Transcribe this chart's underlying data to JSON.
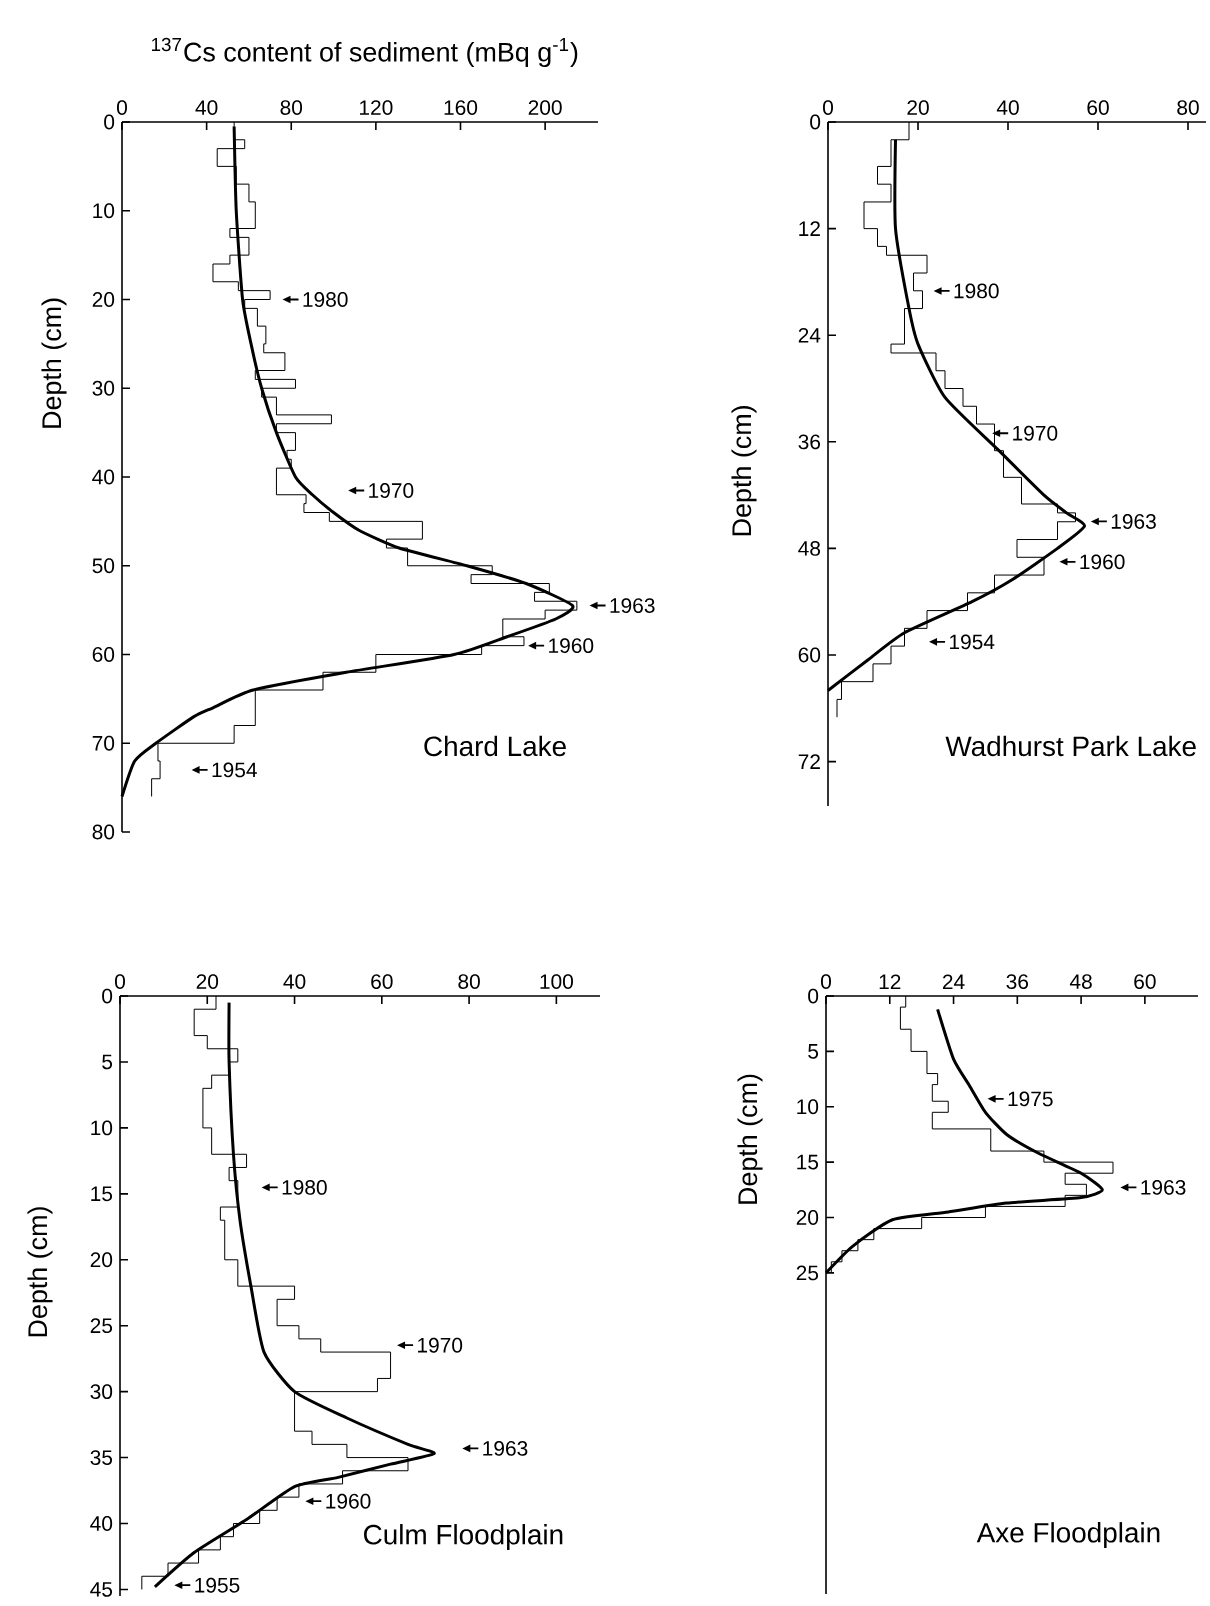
{
  "chart_data": [
    {
      "type": "line",
      "xlabel": "$^{137}$Cs content of sediment (mBq g$^{-1}$)",
      "ylabel": "Depth (cm)",
      "title": "Chard Lake",
      "xlim": [
        0,
        225
      ],
      "xticks": [
        0,
        40,
        80,
        120,
        160,
        200
      ],
      "ylim": [
        80,
        0
      ],
      "yticks": [
        0,
        10,
        20,
        30,
        40,
        50,
        60,
        70,
        80
      ],
      "series": [
        {
          "type": "step",
          "color": "#000000",
          "x": [
            53,
            53,
            58,
            58,
            45,
            45,
            54,
            54,
            60,
            60,
            63,
            63,
            51,
            51,
            60,
            60,
            51,
            51,
            43,
            43,
            55,
            55,
            70,
            70,
            58,
            58,
            64,
            64,
            68,
            68,
            67,
            67,
            77,
            77,
            63,
            63,
            82,
            82,
            66,
            66,
            73,
            73,
            99,
            99,
            73,
            73,
            82,
            82,
            78,
            78,
            80,
            80,
            73,
            73,
            87,
            87,
            86,
            86,
            98,
            98,
            142,
            142,
            125,
            125,
            135,
            135,
            175,
            175,
            165,
            165,
            202,
            202,
            195,
            195,
            215,
            215,
            200,
            200,
            180,
            180,
            190,
            190,
            170,
            170,
            120,
            120,
            95,
            95,
            63,
            63,
            53,
            53,
            17,
            17,
            18,
            18,
            14,
            14
          ],
          "values": [
            0,
            2,
            2,
            3,
            3,
            5,
            5,
            7,
            7,
            9,
            9,
            12,
            12,
            13,
            13,
            15,
            15,
            16,
            16,
            18,
            18,
            19,
            19,
            20,
            20,
            21,
            21,
            23,
            23,
            25,
            25,
            26,
            26,
            28,
            28,
            29,
            29,
            30,
            30,
            31,
            31,
            33,
            33,
            34,
            34,
            35,
            35,
            37,
            37,
            38,
            38,
            39,
            39,
            42,
            42,
            43,
            43,
            44,
            44,
            45,
            45,
            47,
            47,
            48,
            48,
            50,
            50,
            51,
            51,
            52,
            52,
            53,
            53,
            54,
            54,
            55,
            55,
            56,
            56,
            58,
            58,
            59,
            59,
            60,
            60,
            62,
            62,
            64,
            64,
            68,
            68,
            70,
            70,
            72,
            72,
            74,
            74,
            76
          ]
        },
        {
          "type": "line",
          "color": "#000000",
          "x": [
            53,
            54,
            57,
            61,
            66,
            73,
            82,
            90,
            100,
            112,
            131,
            163,
            191,
            213,
            205,
            182,
            157,
            106,
            62,
            43,
            34,
            16,
            6,
            0
          ],
          "values": [
            0.5,
            10,
            20,
            25,
            30,
            35,
            40,
            42,
            44,
            46,
            48,
            50,
            52,
            54.5,
            56,
            58,
            60,
            62,
            64,
            66,
            67,
            70,
            72,
            76
          ]
        }
      ],
      "annotations": [
        "1980",
        "1970",
        "1963",
        "1960",
        "1954"
      ]
    },
    {
      "type": "line",
      "ylabel": "Depth (cm)",
      "title": "Wadhurst Park Lake",
      "xlim": [
        0,
        84
      ],
      "xticks": [
        0,
        20,
        40,
        60,
        80
      ],
      "ylim": [
        77,
        0
      ],
      "yticks": [
        0,
        12,
        24,
        36,
        48,
        60,
        72
      ],
      "series": [
        {
          "type": "step",
          "color": "#000000",
          "x": [
            18,
            18,
            14,
            14,
            11,
            11,
            14,
            14,
            8,
            8,
            11,
            11,
            13,
            13,
            22,
            22,
            19,
            19,
            21,
            21,
            17,
            17,
            14,
            14,
            24,
            24,
            26,
            26,
            30,
            30,
            33,
            33,
            37,
            37,
            39,
            39,
            43,
            43,
            51,
            51,
            55,
            55,
            51,
            51,
            42,
            42,
            48,
            48,
            37,
            37,
            31,
            31,
            22,
            22,
            17,
            17,
            14,
            14,
            10,
            10,
            3,
            3,
            2,
            2
          ],
          "values": [
            0,
            2,
            2,
            5,
            5,
            7,
            7,
            9,
            9,
            12,
            12,
            14,
            14,
            15,
            15,
            17,
            17,
            19,
            19,
            21,
            21,
            25,
            25,
            26,
            26,
            28,
            28,
            30,
            30,
            32,
            32,
            34,
            34,
            37,
            37,
            40,
            40,
            43,
            43,
            44,
            44,
            45,
            45,
            47,
            47,
            49,
            49,
            51,
            51,
            53,
            53,
            55,
            55,
            57,
            57,
            59,
            59,
            61,
            61,
            63,
            63,
            65,
            65,
            67
          ]
        },
        {
          "type": "line",
          "color": "#000000",
          "x": [
            15,
            15,
            18,
            20,
            26,
            38,
            48,
            53,
            57,
            51,
            41,
            32,
            17,
            9,
            0
          ],
          "values": [
            2,
            12,
            21,
            25,
            31,
            37,
            42,
            44,
            45.5,
            48,
            51.5,
            54,
            57.5,
            60.5,
            64
          ]
        }
      ],
      "annotations": [
        "1980",
        "1970",
        "1963",
        "1960",
        "1954"
      ]
    },
    {
      "type": "line",
      "ylabel": "Depth (cm)",
      "title": "Culm Floodplain",
      "xlim": [
        0,
        110
      ],
      "xticks": [
        0,
        20,
        40,
        60,
        80,
        100
      ],
      "ylim": [
        45.5,
        0
      ],
      "yticks": [
        0,
        5,
        10,
        15,
        20,
        25,
        30,
        35,
        40,
        45
      ],
      "series": [
        {
          "type": "step",
          "color": "#000000",
          "x": [
            22,
            22,
            17,
            17,
            20,
            20,
            27,
            27,
            25,
            25,
            21,
            21,
            19,
            19,
            21,
            21,
            29,
            29,
            25,
            25,
            27,
            27,
            23,
            23,
            24,
            24,
            27,
            27,
            40,
            40,
            36,
            36,
            41,
            41,
            46,
            46,
            62,
            62,
            59,
            59,
            40,
            40,
            44,
            44,
            52,
            52,
            66,
            66,
            51,
            51,
            41,
            41,
            36,
            36,
            32,
            32,
            26,
            26,
            23,
            23,
            18,
            18,
            11,
            11,
            5,
            5
          ],
          "values": [
            0,
            1,
            1,
            3,
            3,
            4,
            4,
            5,
            5,
            6,
            6,
            7,
            7,
            10,
            10,
            12,
            12,
            13,
            13,
            14,
            14,
            16,
            16,
            17,
            17,
            20,
            20,
            22,
            22,
            23,
            23,
            25,
            25,
            26,
            26,
            27,
            27,
            29,
            29,
            30,
            30,
            33,
            33,
            34,
            34,
            35,
            35,
            36,
            36,
            37,
            37,
            38,
            38,
            39,
            39,
            40,
            40,
            41,
            41,
            42,
            42,
            43,
            43,
            44,
            44,
            45
          ]
        },
        {
          "type": "line",
          "color": "#000000",
          "x": [
            25,
            25,
            26,
            27.5,
            30,
            33,
            40,
            52,
            66,
            72,
            62,
            50,
            40,
            29,
            17,
            8
          ],
          "values": [
            0.5,
            5,
            12,
            17,
            22,
            27,
            30,
            32,
            34,
            34.7,
            35.5,
            36.5,
            37.2,
            39.7,
            42.2,
            44.8
          ]
        }
      ],
      "annotations": [
        "1980",
        "1970",
        "1963",
        "1960",
        "1955"
      ]
    },
    {
      "type": "line",
      "ylabel": "Depth (cm)",
      "title": "Axe Floodplain",
      "xlim": [
        0,
        70
      ],
      "xticks": [
        0,
        12,
        24,
        36,
        48,
        60
      ],
      "ylim": [
        54,
        0
      ],
      "yticks": [
        0,
        5,
        10,
        15,
        20,
        25
      ],
      "series": [
        {
          "type": "step",
          "color": "#000000",
          "x": [
            15,
            15,
            14,
            14,
            16,
            16,
            19,
            19,
            21,
            21,
            20,
            20,
            23,
            23,
            20,
            20,
            31,
            31,
            41,
            41,
            54,
            54,
            45,
            45,
            49,
            49,
            45,
            45,
            30,
            30,
            18,
            18,
            9,
            9,
            6,
            6,
            3,
            3,
            1,
            1
          ],
          "values": [
            0,
            1,
            1,
            3,
            3,
            5,
            5,
            7,
            7,
            8,
            8,
            9.5,
            9.5,
            10.5,
            10.5,
            12,
            12,
            14,
            14,
            15,
            15,
            16,
            16,
            17,
            17,
            18,
            18,
            19,
            19,
            20,
            20,
            21,
            21,
            22,
            22,
            23,
            23,
            24,
            24,
            25
          ]
        },
        {
          "type": "line",
          "color": "#000000",
          "x": [
            21,
            24,
            27,
            30,
            34,
            40,
            48,
            52,
            48,
            34,
            23,
            12.5,
            5,
            0
          ],
          "values": [
            1.2,
            5.7,
            8.1,
            10.5,
            12.5,
            14.2,
            16,
            17.5,
            18.2,
            18.7,
            19.5,
            20.2,
            22.6,
            25
          ]
        }
      ],
      "annotations": [
        "1975",
        "1963"
      ]
    }
  ]
}
